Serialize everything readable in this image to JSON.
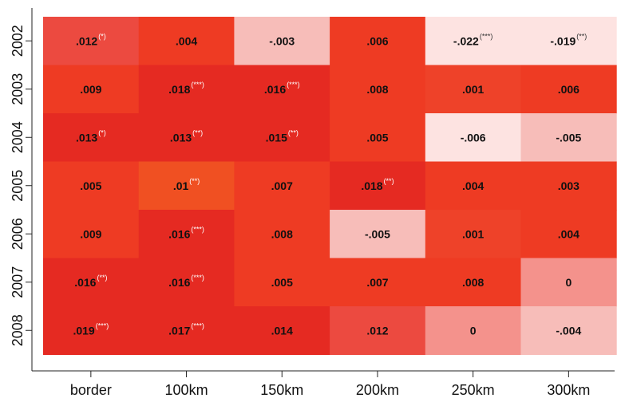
{
  "chart_data": {
    "type": "heatmap",
    "x_categories": [
      "border",
      "100km",
      "150km",
      "200km",
      "250km",
      "300km"
    ],
    "y_categories": [
      "2002",
      "2003",
      "2004",
      "2005",
      "2006",
      "2007",
      "2008"
    ],
    "cells": [
      [
        {
          "label": ".012",
          "value": 0.012,
          "sig": "(*)"
        },
        {
          "label": ".004",
          "value": 0.004,
          "sig": ""
        },
        {
          "label": "-.003",
          "value": -0.003,
          "sig": ""
        },
        {
          "label": ".006",
          "value": 0.006,
          "sig": ""
        },
        {
          "label": "-.022",
          "value": -0.022,
          "sig": "(***)"
        },
        {
          "label": "-.019",
          "value": -0.019,
          "sig": "(**)"
        }
      ],
      [
        {
          "label": ".009",
          "value": 0.009,
          "sig": ""
        },
        {
          "label": ".018",
          "value": 0.018,
          "sig": "(***)"
        },
        {
          "label": ".016",
          "value": 0.016,
          "sig": "(***)"
        },
        {
          "label": ".008",
          "value": 0.008,
          "sig": ""
        },
        {
          "label": ".001",
          "value": 0.001,
          "sig": ""
        },
        {
          "label": ".006",
          "value": 0.006,
          "sig": ""
        }
      ],
      [
        {
          "label": ".013",
          "value": 0.013,
          "sig": "(*)"
        },
        {
          "label": ".013",
          "value": 0.013,
          "sig": "(**)"
        },
        {
          "label": ".015",
          "value": 0.015,
          "sig": "(**)"
        },
        {
          "label": ".005",
          "value": 0.005,
          "sig": ""
        },
        {
          "label": "-.006",
          "value": -0.006,
          "sig": ""
        },
        {
          "label": "-.005",
          "value": -0.005,
          "sig": ""
        }
      ],
      [
        {
          "label": ".005",
          "value": 0.005,
          "sig": ""
        },
        {
          "label": ".01",
          "value": 0.01,
          "sig": "(**)"
        },
        {
          "label": ".007",
          "value": 0.007,
          "sig": ""
        },
        {
          "label": ".018",
          "value": 0.018,
          "sig": "(**)"
        },
        {
          "label": ".004",
          "value": 0.004,
          "sig": ""
        },
        {
          "label": ".003",
          "value": 0.003,
          "sig": ""
        }
      ],
      [
        {
          "label": ".009",
          "value": 0.009,
          "sig": ""
        },
        {
          "label": ".016",
          "value": 0.016,
          "sig": "(***)"
        },
        {
          "label": ".008",
          "value": 0.008,
          "sig": ""
        },
        {
          "label": "-.005",
          "value": -0.005,
          "sig": ""
        },
        {
          "label": ".001",
          "value": 0.001,
          "sig": ""
        },
        {
          "label": ".004",
          "value": 0.004,
          "sig": ""
        }
      ],
      [
        {
          "label": ".016",
          "value": 0.016,
          "sig": "(**)"
        },
        {
          "label": ".016",
          "value": 0.016,
          "sig": "(***)"
        },
        {
          "label": ".005",
          "value": 0.005,
          "sig": ""
        },
        {
          "label": ".007",
          "value": 0.007,
          "sig": ""
        },
        {
          "label": ".008",
          "value": 0.008,
          "sig": ""
        },
        {
          "label": "0",
          "value": 0,
          "sig": ""
        }
      ],
      [
        {
          "label": ".019",
          "value": 0.019,
          "sig": "(***)"
        },
        {
          "label": ".017",
          "value": 0.017,
          "sig": "(***)"
        },
        {
          "label": ".014",
          "value": 0.014,
          "sig": ""
        },
        {
          "label": ".012",
          "value": 0.012,
          "sig": ""
        },
        {
          "label": "0",
          "value": 0,
          "sig": ""
        },
        {
          "label": "-.004",
          "value": -0.004,
          "sig": ""
        }
      ]
    ],
    "colors": [
      [
        "#ec4a40",
        "#ee3b23",
        "#f7bdb9",
        "#ee3b23",
        "#fde3e1",
        "#fde3e1"
      ],
      [
        "#ee3b23",
        "#e52a22",
        "#e52a22",
        "#ee3b23",
        "#ee4229",
        "#ee3b23"
      ],
      [
        "#e52a22",
        "#e52a22",
        "#e52a22",
        "#ee3b23",
        "#fde3e1",
        "#f7bdb9"
      ],
      [
        "#ee3b23",
        "#f05022",
        "#ee3b23",
        "#e52a22",
        "#ee3b23",
        "#ee3b23"
      ],
      [
        "#ee3b23",
        "#e52a22",
        "#ee3b23",
        "#f7bdb9",
        "#ee4229",
        "#ee3b23"
      ],
      [
        "#e52a22",
        "#e52a22",
        "#ee3b23",
        "#ee3b23",
        "#ee3b23",
        "#f4928c"
      ],
      [
        "#e52a22",
        "#e52a22",
        "#e52a22",
        "#ec4a40",
        "#f4928c",
        "#f7bdb9"
      ]
    ],
    "xlabel": "",
    "ylabel": "",
    "title": "",
    "grid": false,
    "legend": "none"
  }
}
